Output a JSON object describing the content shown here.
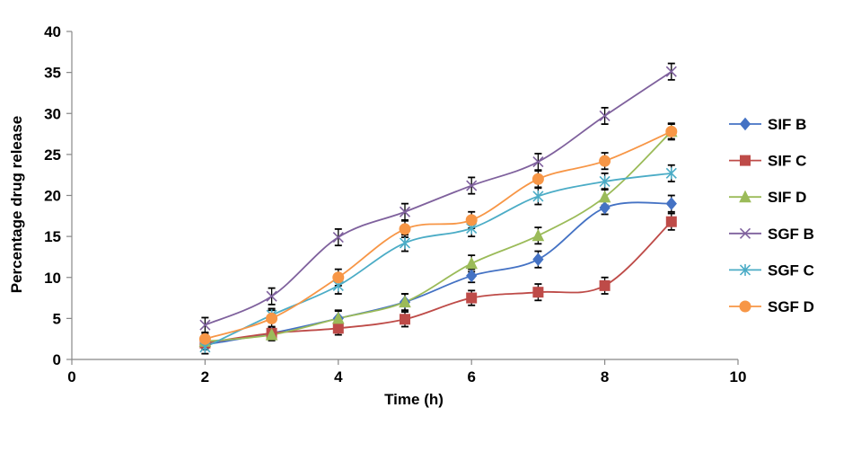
{
  "chart_data": {
    "type": "scatter",
    "title": "",
    "xlabel": "Time (h)",
    "ylabel": "Percentage drug release",
    "xlim": [
      0,
      10
    ],
    "ylim": [
      0,
      40
    ],
    "x_ticks": [
      0,
      2,
      4,
      6,
      8,
      10
    ],
    "y_ticks": [
      0,
      5,
      10,
      15,
      20,
      25,
      30,
      35,
      40
    ],
    "grid": false,
    "smooth_lines": true,
    "error_bars": true,
    "legend_position": "right",
    "series": [
      {
        "name": "SIF B",
        "color": "#4472C4",
        "marker": "diamond",
        "points": [
          {
            "x": 2,
            "y": 1.8,
            "err": 0.6
          },
          {
            "x": 3,
            "y": 3.2,
            "err": 0.7
          },
          {
            "x": 4,
            "y": 5.0,
            "err": 1.0
          },
          {
            "x": 5,
            "y": 7.0,
            "err": 1.0
          },
          {
            "x": 6,
            "y": 10.2,
            "err": 0.8
          },
          {
            "x": 7,
            "y": 12.2,
            "err": 1.0
          },
          {
            "x": 8,
            "y": 18.5,
            "err": 0.8
          },
          {
            "x": 9,
            "y": 19.0,
            "err": 1.0
          }
        ]
      },
      {
        "name": "SIF C",
        "color": "#BE4B48",
        "marker": "square",
        "points": [
          {
            "x": 2,
            "y": 2.0,
            "err": 0.6
          },
          {
            "x": 3,
            "y": 3.2,
            "err": 0.7
          },
          {
            "x": 4,
            "y": 3.8,
            "err": 0.8
          },
          {
            "x": 5,
            "y": 4.9,
            "err": 0.9
          },
          {
            "x": 6,
            "y": 7.5,
            "err": 0.9
          },
          {
            "x": 7,
            "y": 8.2,
            "err": 1.0
          },
          {
            "x": 8,
            "y": 9.0,
            "err": 1.0
          },
          {
            "x": 9,
            "y": 16.8,
            "err": 1.0
          }
        ]
      },
      {
        "name": "SIF D",
        "color": "#9BBB59",
        "marker": "triangle",
        "points": [
          {
            "x": 2,
            "y": 2.2,
            "err": 0.6
          },
          {
            "x": 3,
            "y": 3.0,
            "err": 0.7
          },
          {
            "x": 4,
            "y": 5.0,
            "err": 0.9
          },
          {
            "x": 5,
            "y": 7.0,
            "err": 1.0
          },
          {
            "x": 6,
            "y": 11.7,
            "err": 1.0
          },
          {
            "x": 7,
            "y": 15.1,
            "err": 1.0
          },
          {
            "x": 8,
            "y": 19.8,
            "err": 1.0
          },
          {
            "x": 9,
            "y": 27.8,
            "err": 0.9
          }
        ]
      },
      {
        "name": "SGF B",
        "color": "#7F619D",
        "marker": "x",
        "points": [
          {
            "x": 2,
            "y": 4.2,
            "err": 0.9
          },
          {
            "x": 3,
            "y": 7.7,
            "err": 1.0
          },
          {
            "x": 4,
            "y": 14.9,
            "err": 1.0
          },
          {
            "x": 5,
            "y": 18.0,
            "err": 1.0
          },
          {
            "x": 6,
            "y": 21.2,
            "err": 1.0
          },
          {
            "x": 7,
            "y": 24.1,
            "err": 1.0
          },
          {
            "x": 8,
            "y": 29.7,
            "err": 1.0
          },
          {
            "x": 9,
            "y": 35.1,
            "err": 1.0
          }
        ]
      },
      {
        "name": "SGF C",
        "color": "#4BACC6",
        "marker": "star",
        "points": [
          {
            "x": 2,
            "y": 1.5,
            "err": 0.8
          },
          {
            "x": 3,
            "y": 5.4,
            "err": 0.8
          },
          {
            "x": 4,
            "y": 9.0,
            "err": 1.0
          },
          {
            "x": 5,
            "y": 14.2,
            "err": 1.0
          },
          {
            "x": 6,
            "y": 16.0,
            "err": 1.0
          },
          {
            "x": 7,
            "y": 19.9,
            "err": 1.0
          },
          {
            "x": 8,
            "y": 21.7,
            "err": 1.0
          },
          {
            "x": 9,
            "y": 22.7,
            "err": 1.0
          }
        ]
      },
      {
        "name": "SGF D",
        "color": "#F79646",
        "marker": "circle",
        "points": [
          {
            "x": 2,
            "y": 2.5,
            "err": 0.7
          },
          {
            "x": 3,
            "y": 5.0,
            "err": 1.0
          },
          {
            "x": 4,
            "y": 10.0,
            "err": 1.0
          },
          {
            "x": 5,
            "y": 15.9,
            "err": 1.0
          },
          {
            "x": 6,
            "y": 17.0,
            "err": 1.0
          },
          {
            "x": 7,
            "y": 22.0,
            "err": 1.0
          },
          {
            "x": 8,
            "y": 24.2,
            "err": 1.0
          },
          {
            "x": 9,
            "y": 27.8,
            "err": 1.0
          }
        ]
      }
    ]
  }
}
